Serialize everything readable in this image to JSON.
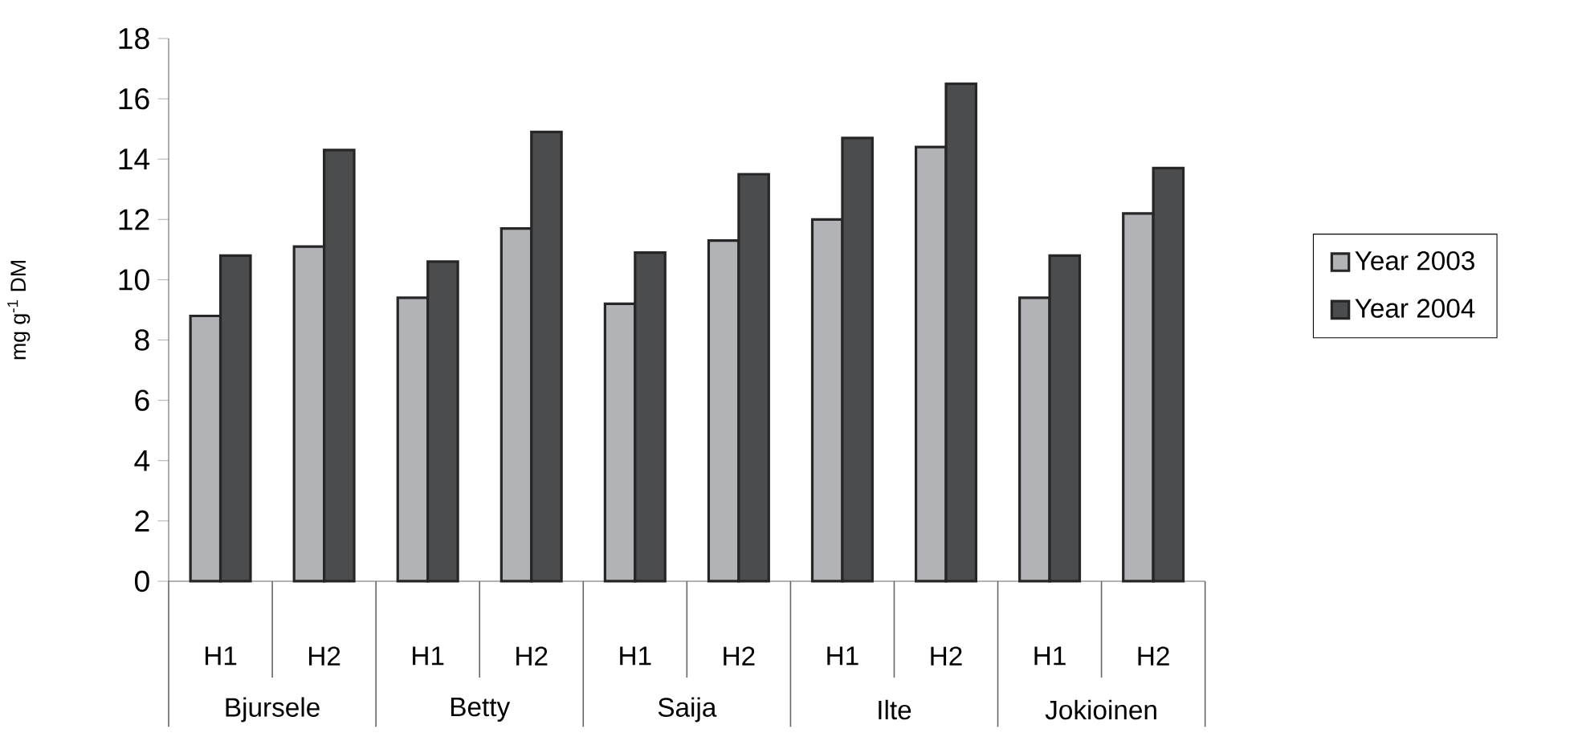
{
  "chart_data": {
    "type": "bar",
    "ylabel": "mg g$^{-1}$ DM",
    "categories": [
      "H1",
      "H2",
      "H1",
      "H2",
      "H1",
      "H2",
      "H1",
      "H2",
      "H1",
      "H2"
    ],
    "series": [
      {
        "name": "Year 2003",
        "color": "#b2b3b7",
        "values": [
          8.8,
          11.1,
          9.4,
          11.7,
          9.2,
          11.3,
          12.0,
          14.4,
          9.4,
          12.2
        ]
      },
      {
        "name": "Year 2004",
        "color": "#4b4c4e",
        "values": [
          10.8,
          14.3,
          10.6,
          14.9,
          10.9,
          13.5,
          14.7,
          16.5,
          10.8,
          13.7
        ]
      }
    ],
    "ylim": [
      0,
      18
    ],
    "yticks": [
      0,
      2,
      4,
      6,
      8,
      10,
      12,
      14,
      16,
      18
    ],
    "legend": "right",
    "annotations": [
      "Bjursele",
      "Betty",
      "Saija",
      "Ilte",
      "Jokioinen"
    ]
  }
}
